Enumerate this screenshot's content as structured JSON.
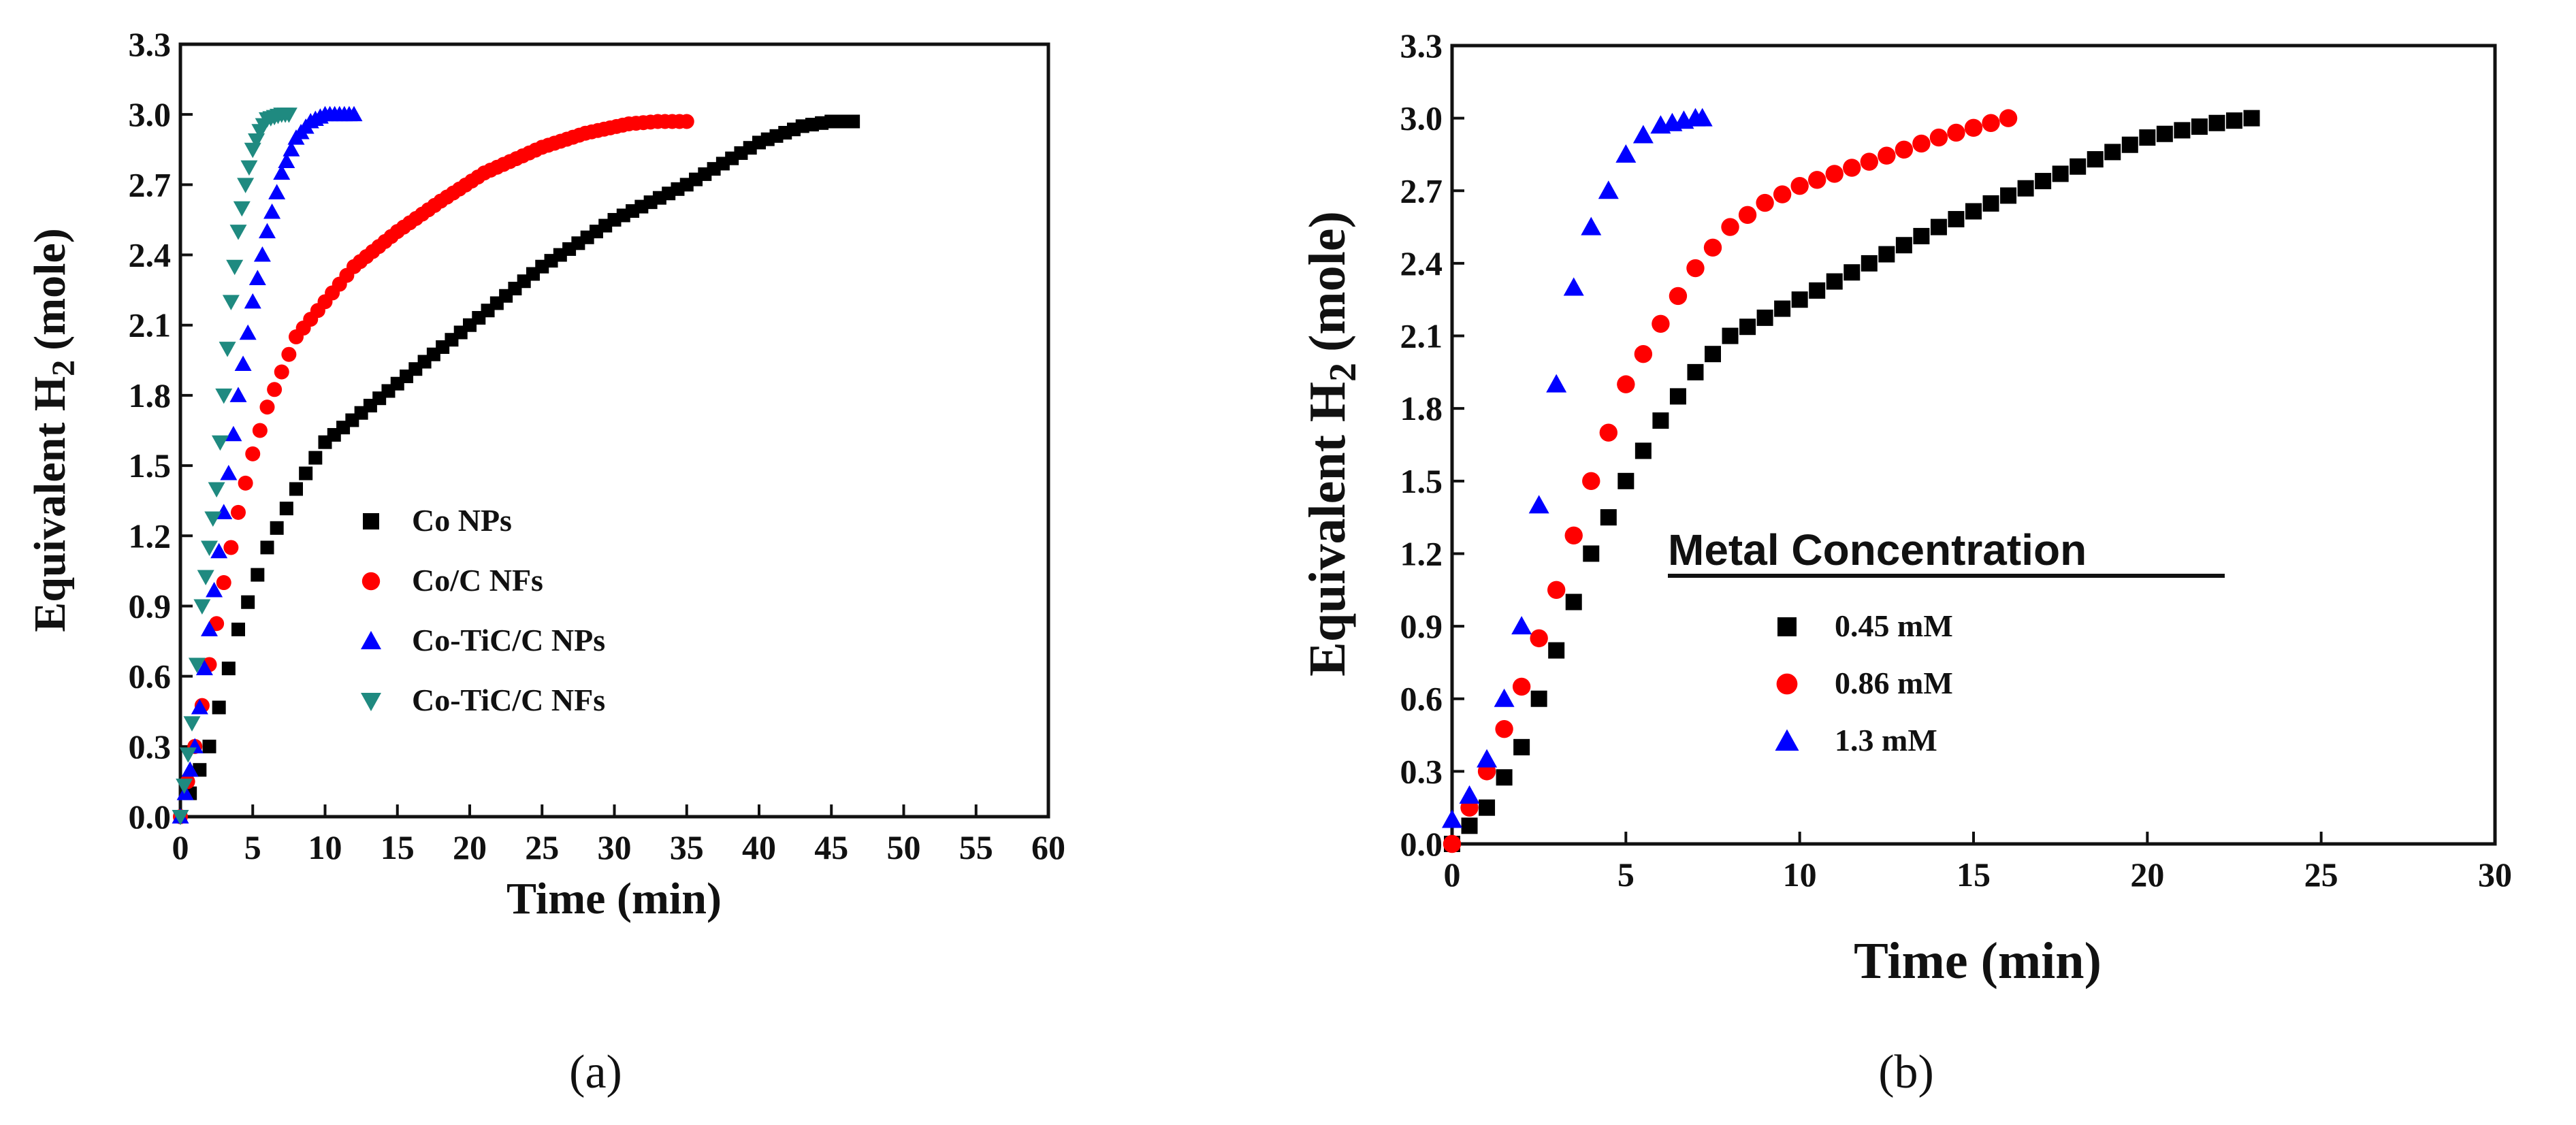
{
  "chart_data": [
    {
      "type": "scatter",
      "panel": "a",
      "panel_label": "(a)",
      "xlabel": "Time (min)",
      "ylabel": "Equivalent H",
      "ylabel_sub": "2",
      "ylabel_unit": "(mole)",
      "xlim": [
        0,
        60
      ],
      "ylim": [
        0,
        3.3
      ],
      "xticks": [
        "0",
        "5",
        "10",
        "15",
        "20",
        "25",
        "30",
        "35",
        "40",
        "45",
        "50",
        "55",
        "60"
      ],
      "yticks": [
        "0.0",
        "0.3",
        "0.6",
        "0.9",
        "1.2",
        "1.5",
        "1.8",
        "2.1",
        "2.4",
        "2.7",
        "3.0",
        "3.3"
      ],
      "grid": false,
      "legend_position": "lower-center",
      "series": [
        {
          "name": "Co NPs",
          "color": "#000000",
          "marker": "square",
          "points": [
            [
              0,
              0
            ],
            [
              2,
              0.3
            ],
            [
              4,
              0.8
            ],
            [
              6,
              1.15
            ],
            [
              8,
              1.4
            ],
            [
              10,
              1.6
            ],
            [
              15,
              1.85
            ],
            [
              20,
              2.1
            ],
            [
              25,
              2.35
            ],
            [
              30,
              2.55
            ],
            [
              35,
              2.7
            ],
            [
              40,
              2.88
            ],
            [
              43,
              2.95
            ],
            [
              45,
              2.97
            ],
            [
              46.5,
              2.97
            ]
          ]
        },
        {
          "name": "Co/C NFs",
          "color": "#ff0000",
          "marker": "circle",
          "points": [
            [
              0,
              0
            ],
            [
              1,
              0.3
            ],
            [
              2,
              0.65
            ],
            [
              3,
              1.0
            ],
            [
              4,
              1.3
            ],
            [
              5,
              1.55
            ],
            [
              6,
              1.75
            ],
            [
              7,
              1.9
            ],
            [
              8,
              2.05
            ],
            [
              10,
              2.2
            ],
            [
              12,
              2.35
            ],
            [
              15,
              2.5
            ],
            [
              18,
              2.63
            ],
            [
              21,
              2.75
            ],
            [
              25,
              2.86
            ],
            [
              28,
              2.92
            ],
            [
              31,
              2.96
            ],
            [
              33,
              2.97
            ],
            [
              35,
              2.97
            ]
          ]
        },
        {
          "name": "Co-TiC/C NPs",
          "color": "#0000ff",
          "marker": "triangle-up",
          "points": [
            [
              0,
              0
            ],
            [
              1,
              0.3
            ],
            [
              2,
              0.8
            ],
            [
              3,
              1.3
            ],
            [
              4,
              1.8
            ],
            [
              5,
              2.2
            ],
            [
              6,
              2.5
            ],
            [
              7,
              2.75
            ],
            [
              8,
              2.9
            ],
            [
              9,
              2.97
            ],
            [
              10,
              3.0
            ],
            [
              12,
              3.0
            ]
          ]
        },
        {
          "name": "Co-TiC/C NFs",
          "color": "#1f8a80",
          "marker": "triangle-down",
          "points": [
            [
              0,
              0
            ],
            [
              0.8,
              0.4
            ],
            [
              1.5,
              0.9
            ],
            [
              2.5,
              1.4
            ],
            [
              3,
              1.8
            ],
            [
              3.5,
              2.2
            ],
            [
              4,
              2.5
            ],
            [
              4.5,
              2.7
            ],
            [
              5,
              2.85
            ],
            [
              5.5,
              2.93
            ],
            [
              6,
              2.98
            ],
            [
              7,
              3.0
            ],
            [
              7.5,
              3.0
            ]
          ]
        }
      ]
    },
    {
      "type": "scatter",
      "panel": "b",
      "panel_label": "(b)",
      "xlabel": "Time (min)",
      "ylabel": "Equivalent H",
      "ylabel_sub": "2",
      "ylabel_unit": "(mole)",
      "xlim": [
        0,
        30
      ],
      "ylim": [
        0,
        3.3
      ],
      "xticks": [
        "0",
        "5",
        "10",
        "15",
        "20",
        "25",
        "30"
      ],
      "yticks": [
        "0.0",
        "0.3",
        "0.6",
        "0.9",
        "1.2",
        "1.5",
        "1.8",
        "2.1",
        "2.4",
        "2.7",
        "3.0",
        "3.3"
      ],
      "grid": false,
      "legend_title": "Metal Concentration",
      "legend_position": "center",
      "series": [
        {
          "name": "0.45 mM",
          "color": "#000000",
          "marker": "square",
          "points": [
            [
              0,
              0
            ],
            [
              1,
              0.15
            ],
            [
              2,
              0.4
            ],
            [
              3,
              0.8
            ],
            [
              4,
              1.2
            ],
            [
              5,
              1.5
            ],
            [
              6,
              1.75
            ],
            [
              7,
              1.95
            ],
            [
              8,
              2.1
            ],
            [
              10,
              2.25
            ],
            [
              12,
              2.4
            ],
            [
              14,
              2.55
            ],
            [
              16,
              2.68
            ],
            [
              18,
              2.8
            ],
            [
              20,
              2.92
            ],
            [
              22,
              2.98
            ],
            [
              23,
              3.0
            ]
          ]
        },
        {
          "name": "0.86 mM",
          "color": "#ff0000",
          "marker": "circle",
          "points": [
            [
              0,
              0
            ],
            [
              1,
              0.3
            ],
            [
              2,
              0.65
            ],
            [
              3,
              1.05
            ],
            [
              4,
              1.5
            ],
            [
              5,
              1.9
            ],
            [
              6,
              2.15
            ],
            [
              7,
              2.38
            ],
            [
              8,
              2.55
            ],
            [
              9,
              2.65
            ],
            [
              10,
              2.72
            ],
            [
              12,
              2.82
            ],
            [
              14,
              2.92
            ],
            [
              16,
              3.0
            ]
          ]
        },
        {
          "name": "1.3 mM",
          "color": "#0000ff",
          "marker": "triangle-up",
          "points": [
            [
              0,
              0.1
            ],
            [
              0.5,
              0.2
            ],
            [
              1,
              0.35
            ],
            [
              1.5,
              0.6
            ],
            [
              2,
              0.9
            ],
            [
              2.5,
              1.4
            ],
            [
              3,
              1.9
            ],
            [
              3.5,
              2.3
            ],
            [
              4,
              2.55
            ],
            [
              4.5,
              2.7
            ],
            [
              5,
              2.85
            ],
            [
              5.5,
              2.93
            ],
            [
              6,
              2.97
            ],
            [
              7,
              3.0
            ],
            [
              7.2,
              3.0
            ]
          ]
        }
      ]
    }
  ]
}
